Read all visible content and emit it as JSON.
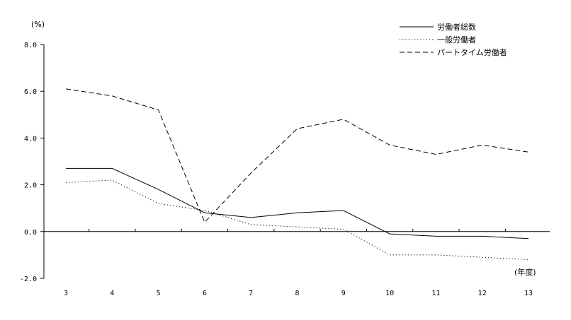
{
  "chart_data": {
    "type": "line",
    "title": "",
    "y_unit_label": "(%)",
    "x_unit_label": "(年度)",
    "categories": [
      "3",
      "4",
      "5",
      "6",
      "7",
      "8",
      "9",
      "10",
      "11",
      "12",
      "13"
    ],
    "ylim": [
      -2.0,
      8.0
    ],
    "yticks": [
      "8.0",
      "6.0",
      "4.0",
      "2.0",
      "0.0",
      "-2.0"
    ],
    "grid": false,
    "legend_position": "top-right",
    "series": [
      {
        "name": "労働者総数",
        "line_style": "solid",
        "color": "#000000",
        "values": [
          2.7,
          2.7,
          1.8,
          0.8,
          0.6,
          0.8,
          0.9,
          -0.1,
          -0.2,
          -0.2,
          -0.3
        ]
      },
      {
        "name": "一般労働者",
        "line_style": "dotted",
        "color": "#000000",
        "values": [
          2.1,
          2.2,
          1.2,
          0.9,
          0.3,
          0.2,
          0.1,
          -1.0,
          -1.0,
          -1.1,
          -1.2
        ]
      },
      {
        "name": "パートタイム労働者",
        "line_style": "dashed",
        "color": "#000000",
        "values": [
          6.1,
          5.8,
          5.2,
          0.4,
          2.5,
          4.4,
          4.8,
          3.7,
          3.3,
          3.7,
          3.4
        ]
      }
    ]
  }
}
